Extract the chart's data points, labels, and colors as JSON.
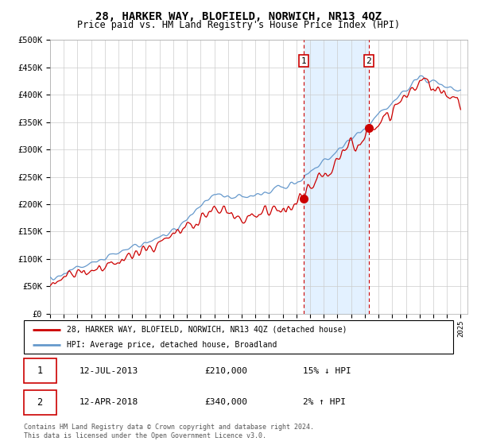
{
  "title": "28, HARKER WAY, BLOFIELD, NORWICH, NR13 4QZ",
  "subtitle": "Price paid vs. HM Land Registry's House Price Index (HPI)",
  "legend_line1": "28, HARKER WAY, BLOFIELD, NORWICH, NR13 4QZ (detached house)",
  "legend_line2": "HPI: Average price, detached house, Broadland",
  "transaction1_date": "12-JUL-2013",
  "transaction1_price": "£210,000",
  "transaction1_hpi": "15% ↓ HPI",
  "transaction1_year": 2013.54,
  "transaction2_date": "12-APR-2018",
  "transaction2_price": "£340,000",
  "transaction2_hpi": "2% ↑ HPI",
  "transaction2_year": 2018.29,
  "footer": "Contains HM Land Registry data © Crown copyright and database right 2024.\nThis data is licensed under the Open Government Licence v3.0.",
  "red_color": "#cc0000",
  "blue_color": "#6699cc",
  "shade_color": "#ddeeff",
  "grid_color": "#cccccc",
  "background_color": "#ffffff",
  "ylim": [
    0,
    500000
  ],
  "yticks": [
    0,
    50000,
    100000,
    150000,
    200000,
    250000,
    300000,
    350000,
    400000,
    450000,
    500000
  ]
}
